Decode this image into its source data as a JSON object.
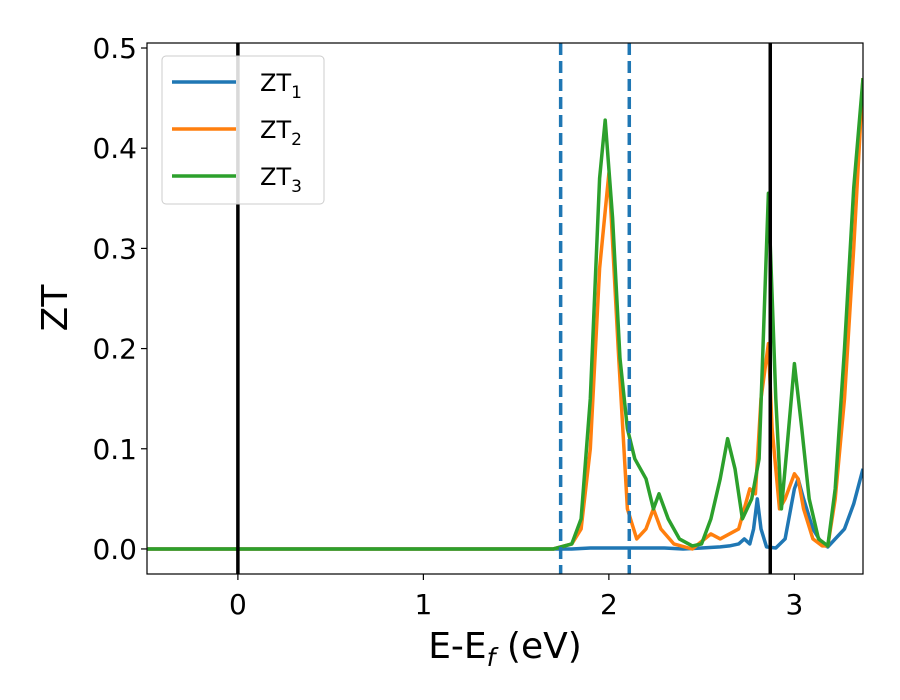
{
  "chart_data": {
    "type": "line",
    "xlabel": "E-E",
    "xlabel_sub": "f",
    "xlabel_unit": " (eV)",
    "ylabel": "ZT",
    "xlim": [
      -0.49,
      3.37
    ],
    "ylim": [
      -0.025,
      0.505
    ],
    "x_ticks": [
      0,
      1,
      2,
      3
    ],
    "x_tick_labels": [
      "0",
      "1",
      "2",
      "3"
    ],
    "y_ticks": [
      0.0,
      0.1,
      0.2,
      0.3,
      0.4,
      0.5
    ],
    "y_tick_labels": [
      "0.0",
      "0.1",
      "0.2",
      "0.3",
      "0.4",
      "0.5"
    ],
    "grid": false,
    "legend_position": "top-left",
    "vertical_lines": [
      {
        "x": 0.0,
        "color": "#000000",
        "style": "solid"
      },
      {
        "x": 1.74,
        "color": "#1f77b4",
        "style": "dashed"
      },
      {
        "x": 2.11,
        "color": "#1f77b4",
        "style": "dashed"
      },
      {
        "x": 2.87,
        "color": "#000000",
        "style": "solid"
      }
    ],
    "series": [
      {
        "name": "ZT",
        "name_sub": "1",
        "color": "#1f77b4",
        "x": [
          -0.49,
          1.7,
          1.8,
          1.9,
          2.0,
          2.1,
          2.2,
          2.3,
          2.4,
          2.5,
          2.6,
          2.65,
          2.7,
          2.73,
          2.76,
          2.78,
          2.8,
          2.82,
          2.85,
          2.9,
          2.95,
          3.0,
          3.02,
          3.05,
          3.1,
          3.15,
          3.18,
          3.22,
          3.27,
          3.32,
          3.37
        ],
        "y": [
          0.0,
          0.0,
          0.0,
          0.001,
          0.001,
          0.001,
          0.001,
          0.001,
          0.0,
          0.001,
          0.002,
          0.003,
          0.005,
          0.01,
          0.005,
          0.02,
          0.05,
          0.02,
          0.002,
          0.001,
          0.01,
          0.06,
          0.07,
          0.05,
          0.02,
          0.005,
          0.002,
          0.01,
          0.02,
          0.045,
          0.08
        ]
      },
      {
        "name": "ZT",
        "name_sub": "2",
        "color": "#ff7f0e",
        "x": [
          -0.49,
          1.7,
          1.8,
          1.85,
          1.9,
          1.95,
          2.0,
          2.05,
          2.1,
          2.15,
          2.2,
          2.24,
          2.28,
          2.35,
          2.45,
          2.55,
          2.6,
          2.7,
          2.76,
          2.79,
          2.82,
          2.86,
          2.88,
          2.92,
          2.95,
          3.0,
          3.02,
          3.05,
          3.1,
          3.15,
          3.18,
          3.22,
          3.27,
          3.32,
          3.37
        ],
        "y": [
          0.0,
          0.0,
          0.005,
          0.02,
          0.1,
          0.28,
          0.375,
          0.2,
          0.04,
          0.01,
          0.02,
          0.04,
          0.02,
          0.005,
          0.0,
          0.015,
          0.01,
          0.02,
          0.06,
          0.055,
          0.15,
          0.205,
          0.12,
          0.04,
          0.05,
          0.075,
          0.07,
          0.04,
          0.01,
          0.003,
          0.003,
          0.05,
          0.15,
          0.3,
          0.47
        ]
      },
      {
        "name": "ZT",
        "name_sub": "3",
        "color": "#2ca02c",
        "x": [
          -0.49,
          1.7,
          1.8,
          1.85,
          1.9,
          1.95,
          1.98,
          2.02,
          2.06,
          2.1,
          2.14,
          2.2,
          2.24,
          2.27,
          2.32,
          2.38,
          2.45,
          2.5,
          2.55,
          2.6,
          2.64,
          2.68,
          2.72,
          2.77,
          2.81,
          2.84,
          2.86,
          2.9,
          2.93,
          2.96,
          3.0,
          3.04,
          3.08,
          3.13,
          3.18,
          3.22,
          3.27,
          3.32,
          3.37
        ],
        "y": [
          0.0,
          0.0,
          0.005,
          0.03,
          0.15,
          0.37,
          0.428,
          0.33,
          0.19,
          0.12,
          0.09,
          0.07,
          0.04,
          0.055,
          0.03,
          0.01,
          0.003,
          0.005,
          0.03,
          0.07,
          0.11,
          0.08,
          0.03,
          0.05,
          0.09,
          0.25,
          0.355,
          0.15,
          0.04,
          0.1,
          0.185,
          0.12,
          0.05,
          0.01,
          0.003,
          0.06,
          0.2,
          0.36,
          0.47
        ]
      }
    ]
  }
}
